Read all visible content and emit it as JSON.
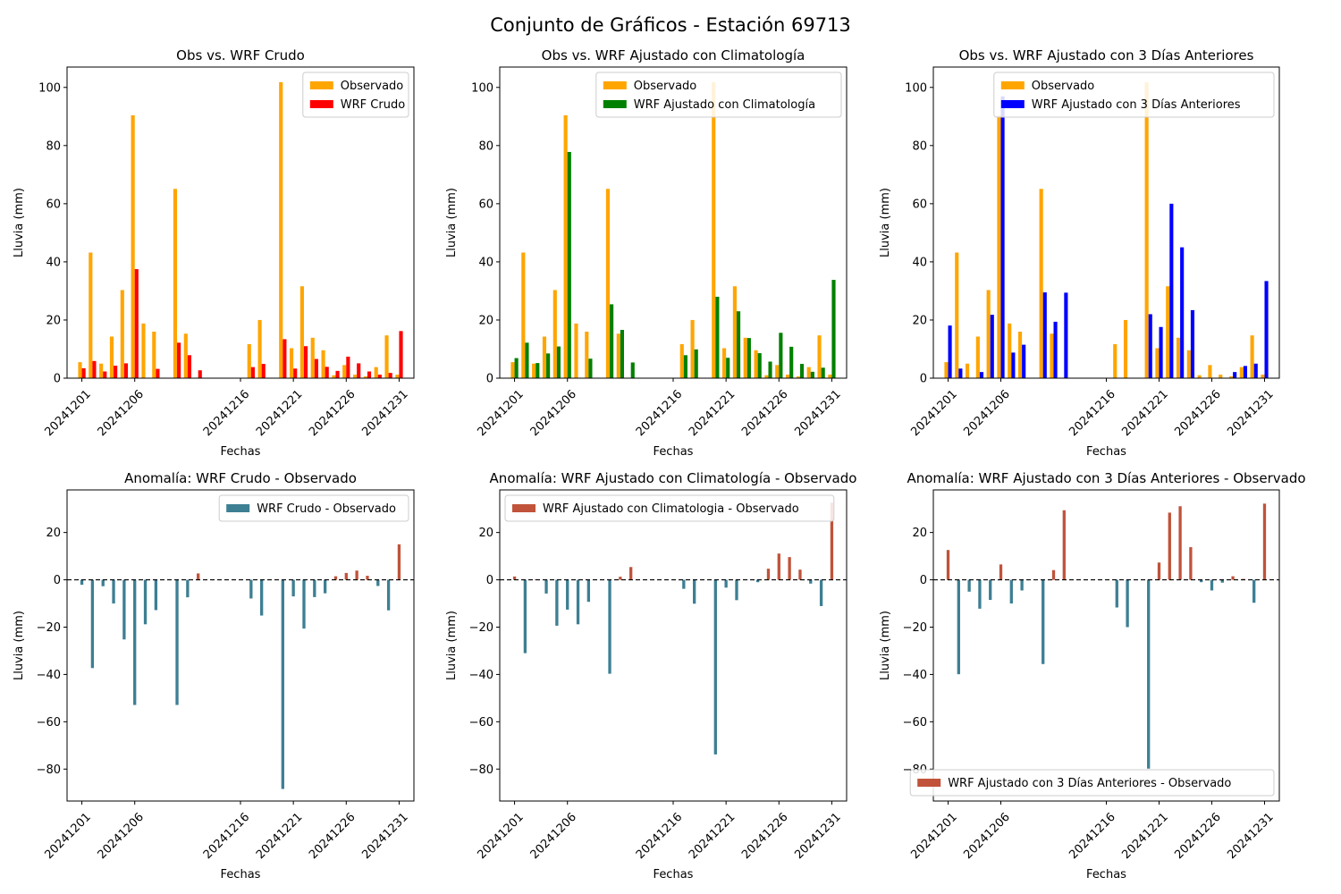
{
  "figure": {
    "title": "Conjunto de Gráficos - Estación 69713",
    "colors": {
      "observed": "#ffa500",
      "wrf_raw": "#ff0000",
      "wrf_clim": "#008000",
      "wrf_3d": "#0000ff",
      "anom_negative": "#3d7f93",
      "anom_positive": "#c0533a"
    }
  },
  "chart_data": [
    {
      "type": "bar",
      "title": "Obs vs. WRF Crudo",
      "xlabel": "Fechas",
      "ylabel": "Lluvia (mm)",
      "ylim": [
        0,
        107
      ],
      "yticks": [
        0,
        20,
        40,
        60,
        80,
        100
      ],
      "xticks": [
        "20241201",
        "20241206",
        "20241216",
        "20241221",
        "20241226",
        "20241231"
      ],
      "legend_position": "top-right",
      "series": [
        {
          "name": "Observado",
          "color_key": "observed",
          "values": [
            5.5,
            43.2,
            5.0,
            14.3,
            30.3,
            90.4,
            18.8,
            16.0,
            65.1,
            15.3,
            0,
            0,
            0,
            0,
            0,
            11.7,
            20.0,
            0,
            101.8,
            10.3,
            31.6,
            13.9,
            9.6,
            1.0,
            4.5,
            1.2,
            0.6,
            3.8,
            14.7,
            1.2
          ]
        },
        {
          "name": "WRF Crudo",
          "color_key": "wrf_raw",
          "values": [
            3.4,
            5.9,
            2.3,
            4.3,
            5.1,
            37.5,
            0,
            3.2,
            12.2,
            7.9,
            2.7,
            0,
            0,
            0,
            0,
            3.8,
            4.9,
            0,
            13.4,
            3.3,
            11.0,
            6.6,
            3.9,
            2.5,
            7.4,
            5.1,
            2.3,
            1.2,
            1.8,
            16.2
          ]
        }
      ],
      "dates": [
        "20241201",
        "20241202",
        "20241203",
        "20241204",
        "20241205",
        "20241206",
        "20241207",
        "20241208",
        "20241210",
        "20241211",
        "20241212",
        "20241213",
        "20241214",
        "20241215",
        "20241216",
        "20241217",
        "20241218",
        "20241219",
        "20241220",
        "20241221",
        "20241222",
        "20241223",
        "20241224",
        "20241225",
        "20241226",
        "20241227",
        "20241228",
        "20241229",
        "20241230",
        "20241231"
      ]
    },
    {
      "type": "bar",
      "title": "Obs vs. WRF Ajustado con Climatología",
      "xlabel": "Fechas",
      "ylabel": "Lluvia (mm)",
      "ylim": [
        0,
        107
      ],
      "yticks": [
        0,
        20,
        40,
        60,
        80,
        100
      ],
      "xticks": [
        "20241201",
        "20241206",
        "20241216",
        "20241221",
        "20241226",
        "20241231"
      ],
      "legend_position": "top-right",
      "series": [
        {
          "name": "Observado",
          "color_key": "observed",
          "values": [
            5.5,
            43.2,
            5.0,
            14.3,
            30.3,
            90.4,
            18.8,
            16.0,
            65.1,
            15.3,
            0,
            0,
            0,
            0,
            0,
            11.7,
            20.0,
            0,
            101.8,
            10.3,
            31.6,
            13.9,
            9.6,
            1.0,
            4.5,
            1.2,
            0.6,
            3.8,
            14.7,
            1.2
          ]
        },
        {
          "name": "WRF Ajustado con Climatología",
          "color_key": "wrf_clim",
          "values": [
            6.9,
            12.2,
            5.2,
            8.5,
            10.9,
            77.8,
            0,
            6.7,
            25.4,
            16.6,
            5.4,
            0,
            0,
            0,
            0,
            7.9,
            9.9,
            0,
            28.0,
            7.0,
            23.0,
            13.8,
            8.6,
            5.7,
            15.6,
            10.8,
            4.9,
            2.2,
            3.6,
            33.8
          ]
        }
      ],
      "dates": [
        "20241201",
        "20241202",
        "20241203",
        "20241204",
        "20241205",
        "20241206",
        "20241207",
        "20241208",
        "20241210",
        "20241211",
        "20241212",
        "20241213",
        "20241214",
        "20241215",
        "20241216",
        "20241217",
        "20241218",
        "20241219",
        "20241220",
        "20241221",
        "20241222",
        "20241223",
        "20241224",
        "20241225",
        "20241226",
        "20241227",
        "20241228",
        "20241229",
        "20241230",
        "20241231"
      ]
    },
    {
      "type": "bar",
      "title": "Obs vs. WRF Ajustado con 3 Días Anteriores",
      "xlabel": "Fechas",
      "ylabel": "Lluvia (mm)",
      "ylim": [
        0,
        107
      ],
      "yticks": [
        0,
        20,
        40,
        60,
        80,
        100
      ],
      "xticks": [
        "20241201",
        "20241206",
        "20241216",
        "20241221",
        "20241226",
        "20241231"
      ],
      "legend_position": "top-right",
      "series": [
        {
          "name": "Observado",
          "color_key": "observed",
          "values": [
            5.5,
            43.2,
            5.0,
            14.3,
            30.3,
            90.4,
            18.8,
            16.0,
            65.1,
            15.3,
            0,
            0,
            0,
            0,
            0,
            11.7,
            20.0,
            0,
            101.8,
            10.3,
            31.6,
            13.9,
            9.6,
            1.0,
            4.5,
            1.2,
            0.6,
            3.8,
            14.7,
            1.2
          ]
        },
        {
          "name": "WRF Ajustado con 3 Días Anteriores",
          "color_key": "wrf_3d",
          "values": [
            18.1,
            3.3,
            0,
            2.1,
            21.8,
            96.9,
            8.8,
            11.5,
            29.5,
            19.4,
            29.4,
            0,
            0,
            0,
            0,
            0,
            0,
            0,
            22.0,
            17.6,
            60.0,
            45.0,
            23.4,
            0,
            0,
            0,
            2.1,
            4.2,
            5.0,
            33.4
          ]
        }
      ],
      "dates": [
        "20241201",
        "20241202",
        "20241203",
        "20241204",
        "20241205",
        "20241206",
        "20241207",
        "20241208",
        "20241210",
        "20241211",
        "20241212",
        "20241213",
        "20241214",
        "20241215",
        "20241216",
        "20241217",
        "20241218",
        "20241219",
        "20241220",
        "20241221",
        "20241222",
        "20241223",
        "20241224",
        "20241225",
        "20241226",
        "20241227",
        "20241228",
        "20241229",
        "20241230",
        "20241231"
      ]
    },
    {
      "type": "bar",
      "title": "Anomalía: WRF Crudo - Observado",
      "xlabel": "Fechas",
      "ylabel": "Lluvia (mm)",
      "ylim": [
        -93.5,
        38
      ],
      "yticks": [
        -80,
        -60,
        -40,
        -20,
        0,
        20
      ],
      "xticks": [
        "20241201",
        "20241206",
        "20241216",
        "20241221",
        "20241226",
        "20241231"
      ],
      "legend_position": "top-right",
      "zero_line": true,
      "series": [
        {
          "name": "WRF Crudo - Observado",
          "color_key": "anom_negative",
          "values": [
            -2.1,
            -37.3,
            -2.7,
            -10.0,
            -25.2,
            -52.9,
            -18.8,
            -12.8,
            -52.9,
            -7.4,
            2.7,
            0,
            0,
            0,
            0,
            -7.9,
            -15.1,
            0,
            -88.4,
            -7.0,
            -20.6,
            -7.3,
            -5.7,
            1.5,
            2.9,
            3.9,
            1.7,
            -2.6,
            -12.9,
            15.0
          ]
        }
      ]
    },
    {
      "type": "bar",
      "title": "Anomalía: WRF Ajustado con Climatología - Observado",
      "xlabel": "Fechas",
      "ylabel": "Lluvia (mm)",
      "ylim": [
        -93.5,
        38
      ],
      "yticks": [
        -80,
        -60,
        -40,
        -20,
        0,
        20
      ],
      "xticks": [
        "20241201",
        "20241206",
        "20241216",
        "20241221",
        "20241226",
        "20241231"
      ],
      "legend_position": "top-left",
      "zero_line": true,
      "series": [
        {
          "name": "WRF Ajustado con Climatologia - Observado",
          "color_key": "anom_positive",
          "values": [
            1.4,
            -31.0,
            0.2,
            -5.8,
            -19.4,
            -12.6,
            -18.8,
            -9.3,
            -39.7,
            1.3,
            5.4,
            0,
            0,
            0,
            0,
            -3.8,
            -10.1,
            0,
            -73.8,
            -3.3,
            -8.6,
            -0.1,
            -1.0,
            4.7,
            11.1,
            9.6,
            4.3,
            -1.6,
            -11.1,
            32.6
          ]
        }
      ]
    },
    {
      "type": "bar",
      "title": "Anomalía: WRF Ajustado con 3 Días Anteriores - Observado",
      "xlabel": "Fechas",
      "ylabel": "Lluvia (mm)",
      "ylim": [
        -93.5,
        38
      ],
      "yticks": [
        -80,
        -60,
        -40,
        -20,
        0,
        20
      ],
      "xticks": [
        "20241201",
        "20241206",
        "20241216",
        "20241221",
        "20241226",
        "20241231"
      ],
      "legend_position": "bottom-right",
      "zero_line": true,
      "series": [
        {
          "name": "WRF Ajustado con 3 Días Anteriores - Observado",
          "color_key": "anom_positive",
          "values": [
            12.6,
            -39.9,
            -5.0,
            -12.2,
            -8.5,
            6.5,
            -10.0,
            -4.5,
            -35.6,
            4.1,
            29.4,
            0,
            0,
            0,
            0,
            -11.7,
            -20.0,
            0,
            -79.8,
            7.3,
            28.4,
            31.1,
            13.8,
            -1.0,
            -4.5,
            -1.2,
            1.5,
            0.4,
            -9.7,
            32.2
          ]
        }
      ]
    }
  ]
}
